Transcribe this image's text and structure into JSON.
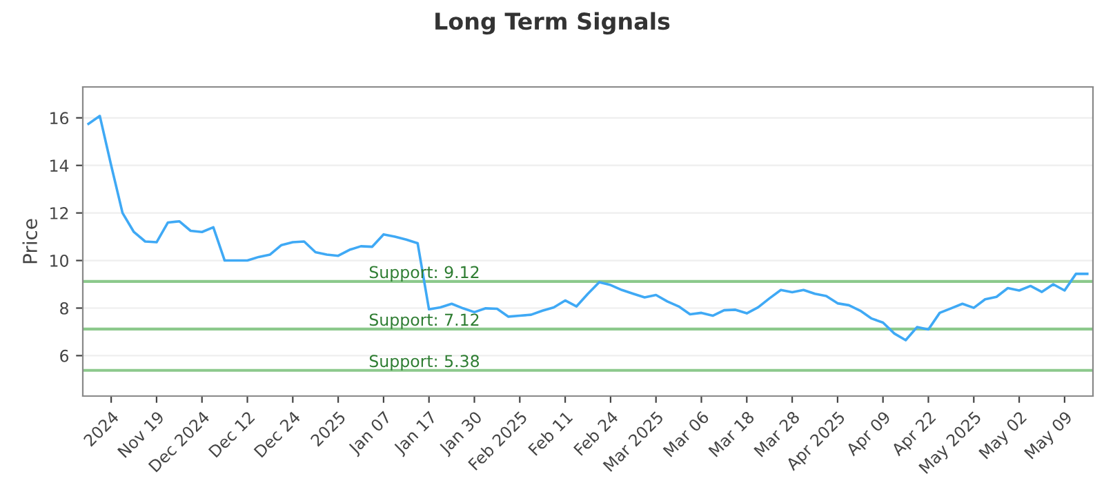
{
  "chart_data": {
    "type": "line",
    "title": "Long Term Signals",
    "ylabel": "Price",
    "categories": [
      null,
      null,
      "2024",
      null,
      null,
      null,
      "Nov 19",
      null,
      null,
      null,
      "Dec 2024",
      null,
      null,
      null,
      "Dec 12",
      null,
      null,
      null,
      "Dec 24",
      null,
      null,
      null,
      "2025",
      null,
      null,
      null,
      "Jan 07",
      null,
      null,
      null,
      "Jan 17",
      null,
      null,
      null,
      "Jan 30",
      null,
      null,
      null,
      "Feb 2025",
      null,
      null,
      null,
      "Feb 11",
      null,
      null,
      null,
      "Feb 24",
      null,
      null,
      null,
      "Mar 2025",
      null,
      null,
      null,
      "Mar 06",
      null,
      null,
      null,
      "Mar 18",
      null,
      null,
      null,
      "Mar 28",
      null,
      null,
      null,
      "Apr 2025",
      null,
      null,
      null,
      "Apr 09",
      null,
      null,
      null,
      "Apr 22",
      null,
      null,
      null,
      "May 2025",
      null,
      null,
      null,
      "May 02",
      null,
      null,
      null,
      "May 09",
      null,
      null
    ],
    "series": [
      {
        "color": "#3fa9f5",
        "values": [
          15.75,
          16.08,
          14.0,
          12.0,
          11.2,
          10.8,
          10.77,
          11.6,
          11.65,
          11.25,
          11.2,
          11.4,
          10.0,
          10.0,
          10.0,
          10.15,
          10.25,
          10.65,
          10.77,
          10.8,
          10.35,
          10.25,
          10.2,
          10.45,
          10.6,
          10.58,
          11.1,
          11.0,
          10.88,
          10.73,
          7.95,
          8.03,
          8.18,
          7.99,
          7.83,
          7.99,
          7.97,
          7.64,
          7.68,
          7.72,
          7.89,
          8.03,
          8.32,
          8.07,
          8.6,
          9.09,
          8.97,
          8.76,
          8.6,
          8.45,
          8.55,
          8.28,
          8.07,
          7.74,
          7.8,
          7.68,
          7.91,
          7.93,
          7.78,
          8.03,
          8.41,
          8.76,
          8.67,
          8.76,
          8.6,
          8.51,
          8.2,
          8.12,
          7.89,
          7.56,
          7.39,
          6.93,
          6.65,
          7.2,
          7.1,
          7.8,
          7.99,
          8.18,
          8.01,
          8.37,
          8.47,
          8.84,
          8.74,
          8.93,
          8.68,
          9.0,
          8.74,
          9.44,
          9.44
        ]
      }
    ],
    "ylim": [
      4.3,
      17.3
    ],
    "yticks": [
      6,
      8,
      10,
      12,
      14,
      16
    ],
    "grid": "y",
    "legend": false,
    "marker": "none",
    "line_style": "solid",
    "ref_lines": [
      {
        "axis": "y",
        "value": 9.12,
        "label": "Support: 9.12",
        "color": "#8cc98c"
      },
      {
        "axis": "y",
        "value": 7.12,
        "label": "Support: 7.12",
        "color": "#8cc98c"
      },
      {
        "axis": "y",
        "value": 5.38,
        "label": "Support: 5.38",
        "color": "#8cc98c"
      }
    ]
  }
}
